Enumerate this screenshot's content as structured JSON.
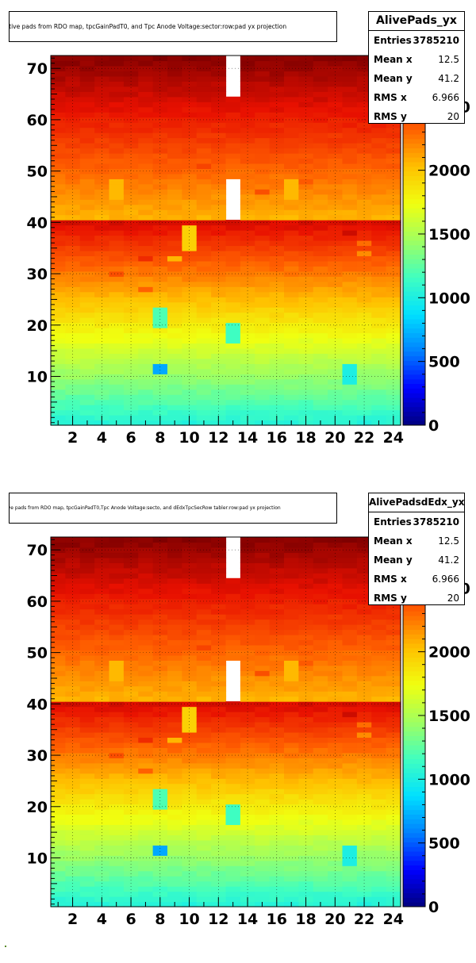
{
  "colors": {
    "frame": "#000000",
    "background": "#ffffff",
    "palette": [
      "#00007f",
      "#0000ff",
      "#0080ff",
      "#00e0ff",
      "#40ffc0",
      "#a0ff60",
      "#f0ff10",
      "#ffc000",
      "#ff6000",
      "#e81000",
      "#7f0000"
    ]
  },
  "chart_data": [
    {
      "type": "heatmap",
      "title": "ctive pads from RDO map, tpcGainPadT0,  and Tpc Anode Voltage:sector:row:pad yx projection",
      "stats": {
        "name": "AlivePads_yx",
        "entries_label": "Entries",
        "entries": "3785210",
        "mean_x_label": "Mean x",
        "mean_x": "12.5",
        "mean_y_label": "Mean y",
        "mean_y": "41.2",
        "rms_x_label": "RMS x",
        "rms_x": "6.966",
        "rms_y_label": "RMS y",
        "rms_y": "20"
      },
      "x_range": [
        0.5,
        24.5
      ],
      "y_range": [
        0.5,
        72.5
      ],
      "x_ticks": [
        "2",
        "4",
        "6",
        "8",
        "10",
        "12",
        "14",
        "16",
        "18",
        "20",
        "22",
        "24"
      ],
      "y_ticks": [
        "10",
        "20",
        "30",
        "40",
        "50",
        "60",
        "70"
      ],
      "z_range": [
        0,
        2900
      ],
      "z_ticks": [
        "0",
        "500",
        "1000",
        "1500",
        "2000",
        "2500"
      ],
      "z_top_label_partial": "0",
      "grid": true,
      "empty_cells": [
        {
          "x": 13,
          "y_from": 65,
          "y_to": 72
        },
        {
          "x": 13,
          "y_from": 41,
          "y_to": 48
        }
      ],
      "hot_cells": [
        {
          "x": 5,
          "y_from": 45,
          "y_to": 48,
          "z": 2050
        },
        {
          "x": 17,
          "y_from": 45,
          "y_to": 48,
          "z": 2050
        },
        {
          "x": 10,
          "y_from": 35,
          "y_to": 39,
          "z": 1950
        }
      ],
      "low_cells": [
        {
          "x": 8,
          "y_from": 11,
          "y_to": 12,
          "z": 700
        },
        {
          "x": 21,
          "y_from": 9,
          "y_to": 12,
          "z": 1000
        },
        {
          "x": 13,
          "y_from": 17,
          "y_to": 20,
          "z": 1150
        },
        {
          "x": 8,
          "y_from": 20,
          "y_to": 23,
          "z": 1200
        }
      ]
    },
    {
      "type": "heatmap",
      "title": "ive pads from RDO map, tpcGainPadT0,Tpc Anode Voltage:secto, and dEdxTpcSecRow tabler:row:pad yx projection",
      "stats": {
        "name": "AlivePadsdEdx_yx",
        "entries_label": "Entries",
        "entries": "3785210",
        "mean_x_label": "Mean x",
        "mean_x": "12.5",
        "mean_y_label": "Mean y",
        "mean_y": "41.2",
        "rms_x_label": "RMS x",
        "rms_x": "6.966",
        "rms_y_label": "RMS y",
        "rms_y": "20"
      },
      "x_range": [
        0.5,
        24.5
      ],
      "y_range": [
        0.5,
        72.5
      ],
      "x_ticks": [
        "2",
        "4",
        "6",
        "8",
        "10",
        "12",
        "14",
        "16",
        "18",
        "20",
        "22",
        "24"
      ],
      "y_ticks": [
        "10",
        "20",
        "30",
        "40",
        "50",
        "60",
        "70"
      ],
      "z_range": [
        0,
        2900
      ],
      "z_ticks": [
        "0",
        "500",
        "1000",
        "1500",
        "2000",
        "2500"
      ],
      "z_top_label_partial": "0",
      "grid": true,
      "empty_cells": [
        {
          "x": 13,
          "y_from": 65,
          "y_to": 72
        },
        {
          "x": 13,
          "y_from": 41,
          "y_to": 48
        }
      ],
      "hot_cells": [
        {
          "x": 5,
          "y_from": 45,
          "y_to": 48,
          "z": 2050
        },
        {
          "x": 17,
          "y_from": 45,
          "y_to": 48,
          "z": 2050
        },
        {
          "x": 10,
          "y_from": 35,
          "y_to": 39,
          "z": 1950
        }
      ],
      "low_cells": [
        {
          "x": 8,
          "y_from": 11,
          "y_to": 12,
          "z": 700
        },
        {
          "x": 21,
          "y_from": 9,
          "y_to": 12,
          "z": 1000
        },
        {
          "x": 13,
          "y_from": 17,
          "y_to": 20,
          "z": 1150
        },
        {
          "x": 8,
          "y_from": 20,
          "y_to": 23,
          "z": 1200
        }
      ]
    }
  ]
}
